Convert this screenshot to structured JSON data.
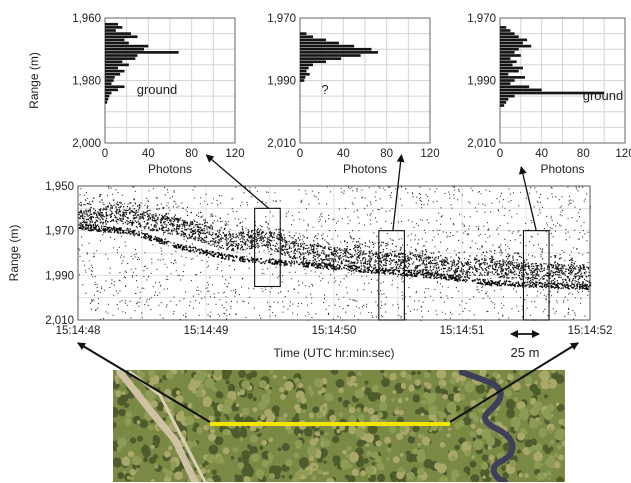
{
  "chart_data": [
    {
      "type": "bar",
      "orientation": "horizontal",
      "xlabel": "Photons",
      "ylabel": "Range (m)",
      "xlim": [
        0,
        120
      ],
      "ylim": [
        1960,
        2000
      ],
      "xticks": [
        "0",
        "40",
        "80",
        "120"
      ],
      "yticks": [
        "1,960",
        "1,980",
        "2,000"
      ],
      "grid": true,
      "annotation": "ground",
      "annotation_range": 1983,
      "bin_size": 1,
      "range_bins": [
        1962,
        1963,
        1964,
        1965,
        1966,
        1967,
        1968,
        1969,
        1970,
        1971,
        1972,
        1973,
        1974,
        1975,
        1976,
        1977,
        1978,
        1979,
        1980,
        1981,
        1982,
        1983,
        1984,
        1985,
        1986,
        1987
      ],
      "values": [
        12,
        16,
        10,
        24,
        30,
        18,
        22,
        40,
        36,
        68,
        30,
        28,
        16,
        22,
        12,
        18,
        14,
        9,
        8,
        6,
        18,
        12,
        6,
        4,
        3,
        2
      ]
    },
    {
      "type": "bar",
      "orientation": "horizontal",
      "xlabel": "Photons",
      "ylabel": "",
      "xlim": [
        0,
        120
      ],
      "ylim": [
        1970,
        2010
      ],
      "xticks": [
        "0",
        "40",
        "80",
        "120"
      ],
      "yticks": [
        "1,970",
        "1,990",
        "2,010"
      ],
      "grid": true,
      "annotation": "?",
      "annotation_range": 1993,
      "bin_size": 1,
      "range_bins": [
        1975,
        1976,
        1977,
        1978,
        1979,
        1980,
        1981,
        1982,
        1983,
        1984,
        1985,
        1986,
        1987,
        1988,
        1989,
        1990
      ],
      "values": [
        6,
        12,
        24,
        36,
        50,
        66,
        72,
        56,
        38,
        24,
        12,
        8,
        6,
        9,
        5,
        4
      ]
    },
    {
      "type": "bar",
      "orientation": "horizontal",
      "xlabel": "Photons",
      "ylabel": "",
      "xlim": [
        0,
        120
      ],
      "ylim": [
        1970,
        2010
      ],
      "xticks": [
        "0",
        "40",
        "80",
        "120"
      ],
      "yticks": [
        "1,970",
        "1,990",
        "2,010"
      ],
      "grid": true,
      "annotation": "ground",
      "annotation_range": 1995,
      "bin_size": 1,
      "range_bins": [
        1973,
        1974,
        1975,
        1976,
        1977,
        1978,
        1979,
        1980,
        1981,
        1982,
        1983,
        1984,
        1985,
        1986,
        1987,
        1988,
        1989,
        1990,
        1991,
        1992,
        1993,
        1994,
        1995,
        1996,
        1997,
        1998
      ],
      "values": [
        6,
        10,
        14,
        18,
        26,
        22,
        30,
        18,
        14,
        20,
        10,
        16,
        12,
        22,
        18,
        8,
        24,
        14,
        10,
        28,
        40,
        100,
        14,
        8,
        6,
        4
      ]
    },
    {
      "type": "scatter",
      "xlabel": "Time (UTC hr:min:sec)",
      "ylabel": "Range (m)",
      "xticks": [
        "15:14:48",
        "15:14:49",
        "15:14:50",
        "15:14:51",
        "15:14:52"
      ],
      "xlim": [
        0,
        4
      ],
      "yticks": [
        "1,950",
        "1,970",
        "1,990",
        "2,010"
      ],
      "ylim": [
        1950,
        2010
      ],
      "grid": true,
      "note": "photon returns; canopy and ground tracks descend from about 1,960 m to about 1,990 m",
      "surface_track": [
        [
          0.0,
          1965
        ],
        [
          0.3,
          1962
        ],
        [
          0.6,
          1966
        ],
        [
          0.9,
          1970
        ],
        [
          1.2,
          1975
        ],
        [
          1.45,
          1973
        ],
        [
          1.7,
          1979
        ],
        [
          2.0,
          1981
        ],
        [
          2.3,
          1983
        ],
        [
          2.6,
          1984
        ],
        [
          2.9,
          1987
        ],
        [
          3.2,
          1986
        ],
        [
          3.5,
          1988
        ],
        [
          3.8,
          1989
        ],
        [
          4.0,
          1990
        ]
      ],
      "ground_track": [
        [
          0.0,
          1968
        ],
        [
          0.4,
          1970
        ],
        [
          0.8,
          1977
        ],
        [
          1.2,
          1982
        ],
        [
          1.6,
          1984
        ],
        [
          2.0,
          1986
        ],
        [
          2.4,
          1988
        ],
        [
          2.8,
          1990
        ],
        [
          3.2,
          1993
        ],
        [
          3.6,
          1994
        ],
        [
          4.0,
          1995
        ]
      ],
      "boxes": [
        {
          "t_start": 1.38,
          "t_end": 1.58,
          "range_top": 1960,
          "range_bottom": 1995
        },
        {
          "t_start": 2.35,
          "t_end": 2.55,
          "range_top": 1970,
          "range_bottom": 2010
        },
        {
          "t_start": 3.48,
          "t_end": 3.68,
          "range_top": 1970,
          "range_bottom": 2010
        }
      ],
      "scale_bar_label": "25 m"
    }
  ],
  "aerial_photo": {
    "colors": {
      "vegetation": "#7a8a45",
      "dark_vegetation": "#4e5b2c",
      "light_vegetation": "#a9a86a",
      "river": "#3e3f5a",
      "sand_path": "#cfc2a4",
      "track_line": "#f2e600"
    }
  }
}
